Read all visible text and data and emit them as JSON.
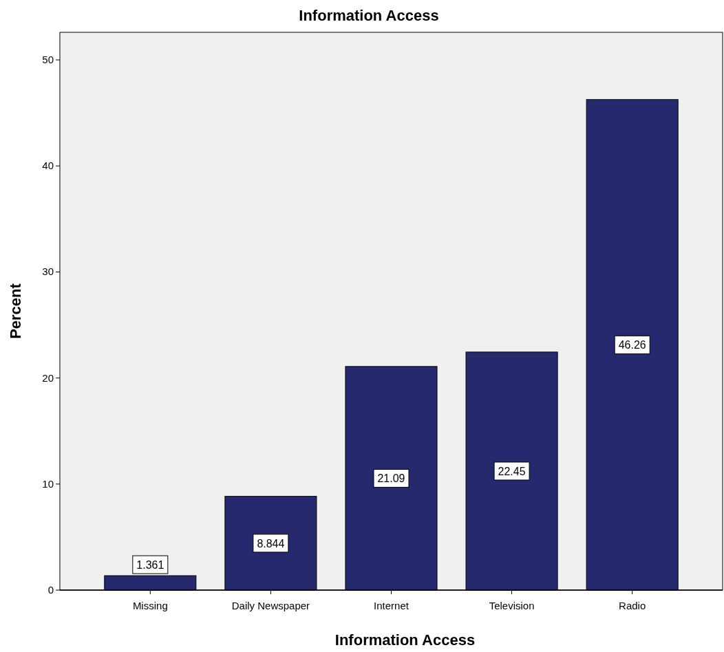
{
  "chart_data": {
    "type": "bar",
    "title": "Information Access",
    "xlabel": "Information Access",
    "ylabel": "Percent",
    "categories": [
      "Missing",
      "Daily Newspaper",
      "Internet",
      "Television",
      "Radio"
    ],
    "values": [
      1.361,
      8.844,
      21.09,
      22.45,
      46.26
    ],
    "color": "#26296e",
    "ylim": [
      0,
      52.6
    ],
    "yticks": [
      0,
      10,
      20,
      30,
      40,
      50
    ],
    "grid": false,
    "data_labels": true
  }
}
